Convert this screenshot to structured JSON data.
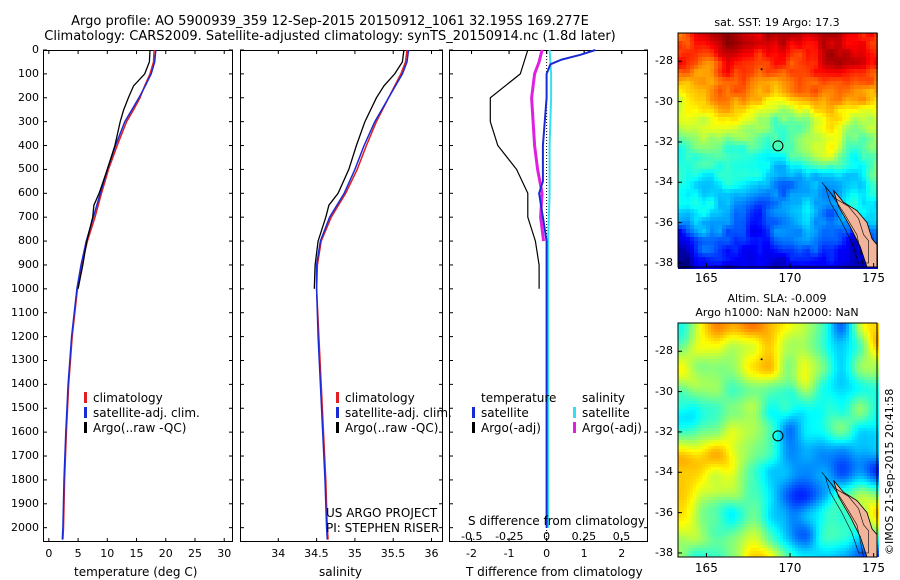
{
  "titles": {
    "line1": "Argo profile: AO 5900939_359 12-Sep-2015 20150912_1061 32.195S 169.277E",
    "line2": "Climatology: CARS2009. Satellite-adjusted climatology: synTS_20150914.nc (1.8d later)"
  },
  "colors": {
    "climatology": "#e02020",
    "satellite": "#1a2bd6",
    "argo": "#000000",
    "sat_salinity": "#33e0f0",
    "argo_salinity": "#e020e0"
  },
  "depth_ticks": [
    "0",
    "100",
    "200",
    "300",
    "400",
    "500",
    "600",
    "700",
    "800",
    "900",
    "1000",
    "1100",
    "1200",
    "1300",
    "1400",
    "1500",
    "1600",
    "1700",
    "1800",
    "1900",
    "2000"
  ],
  "chart_data": [
    {
      "type": "line",
      "xlabel": "temperature (deg C)",
      "ylabel": "",
      "xlim": [
        -1,
        31.5
      ],
      "ylim": [
        2060,
        0
      ],
      "xticks": [
        "0",
        "5",
        "10",
        "15",
        "20",
        "25",
        "30"
      ],
      "legend": [
        "climatology",
        "satellite-adj. clim.",
        "Argo(..raw -QC)"
      ],
      "series": [
        {
          "name": "climatology",
          "depth": [
            0,
            50,
            100,
            150,
            200,
            250,
            300,
            400,
            500,
            600,
            700,
            800,
            900,
            1000,
            1200,
            1400,
            1600,
            1800,
            2000,
            2050
          ],
          "values": [
            18.0,
            17.9,
            17.3,
            16.4,
            15.6,
            14.5,
            13.3,
            11.7,
            10.2,
            9.0,
            7.9,
            6.6,
            5.6,
            4.9,
            4.0,
            3.4,
            3.0,
            2.7,
            2.5,
            2.4
          ]
        },
        {
          "name": "satellite-adj. clim.",
          "depth": [
            0,
            50,
            100,
            150,
            200,
            250,
            300,
            400,
            500,
            600,
            700,
            800,
            900,
            1000,
            1200,
            1400,
            1600,
            1800,
            2000,
            2050
          ],
          "values": [
            18.3,
            18.1,
            17.5,
            16.5,
            15.4,
            14.2,
            13.0,
            11.4,
            10.0,
            8.8,
            7.6,
            6.4,
            5.5,
            4.8,
            3.9,
            3.3,
            2.9,
            2.6,
            2.4,
            2.3
          ]
        },
        {
          "name": "Argo(..raw -QC)",
          "depth": [
            0,
            50,
            100,
            150,
            200,
            250,
            300,
            400,
            500,
            600,
            650,
            700,
            800,
            900,
            1000
          ],
          "values": [
            17.3,
            17.2,
            16.4,
            14.5,
            13.6,
            12.8,
            12.2,
            11.3,
            10.0,
            8.6,
            7.7,
            7.5,
            6.5,
            5.8,
            5.0
          ]
        }
      ]
    },
    {
      "type": "line",
      "xlabel": "salinity",
      "ylabel": "",
      "xlim": [
        33.5,
        36.15
      ],
      "ylim": [
        2060,
        0
      ],
      "xticks": [
        "34",
        "34.5",
        "35",
        "35.5",
        "36"
      ],
      "legend": [
        "climatology",
        "satellite-adj. clim.",
        "Argo(..raw -QC)"
      ],
      "series": [
        {
          "name": "climatology",
          "depth": [
            0,
            50,
            100,
            150,
            200,
            300,
            400,
            500,
            600,
            700,
            800,
            900,
            1000,
            1200,
            1400,
            1600,
            1800,
            2000,
            2050
          ],
          "values": [
            35.68,
            35.66,
            35.6,
            35.52,
            35.44,
            35.28,
            35.15,
            35.03,
            34.88,
            34.69,
            34.56,
            34.51,
            34.5,
            34.53,
            34.56,
            34.59,
            34.62,
            34.64,
            34.65
          ]
        },
        {
          "name": "satellite-adj. clim.",
          "depth": [
            0,
            50,
            100,
            150,
            200,
            300,
            400,
            500,
            600,
            700,
            800,
            900,
            1000,
            1200,
            1400,
            1600,
            1800,
            2000,
            2050
          ],
          "values": [
            35.7,
            35.68,
            35.62,
            35.53,
            35.44,
            35.26,
            35.12,
            35.0,
            34.86,
            34.67,
            34.55,
            34.5,
            34.5,
            34.52,
            34.55,
            34.58,
            34.61,
            34.63,
            34.64
          ]
        },
        {
          "name": "Argo(..raw -QC)",
          "depth": [
            0,
            50,
            100,
            150,
            200,
            300,
            400,
            500,
            600,
            650,
            700,
            800,
            900,
            1000
          ],
          "values": [
            35.64,
            35.62,
            35.52,
            35.38,
            35.28,
            35.13,
            35.02,
            34.92,
            34.78,
            34.66,
            34.62,
            34.52,
            34.48,
            34.47
          ]
        }
      ]
    },
    {
      "type": "line",
      "xlabel": "T difference from climatology",
      "xlabel_top": "S difference from climatology",
      "ylabel": "",
      "xlim": [
        -2.6,
        2.7
      ],
      "ylim": [
        2060,
        0
      ],
      "xticks": [
        "-2",
        "-1",
        "0",
        "1",
        "2"
      ],
      "xticks_top": [
        "-0.5",
        "-0.25",
        "0",
        "0.25",
        "0.5"
      ],
      "legend_left_title": "temperature",
      "legend_right_title": "salinity",
      "legend": [
        "satellite",
        "Argo(-adj)",
        "satellite",
        "Argo(-adj)"
      ],
      "annotation_lines": [
        "US ARGO PROJECT",
        "PI: STEPHEN RISER"
      ],
      "series": [
        {
          "name": "satellite",
          "depth": [
            0,
            20,
            40,
            60,
            100,
            200,
            400,
            550,
            600,
            700,
            800,
            1000,
            1400,
            2000
          ],
          "values": [
            1.3,
            0.9,
            0.4,
            0.1,
            0.0,
            0.0,
            -0.1,
            -0.1,
            -0.2,
            -0.1,
            0.0,
            0.0,
            0.0,
            0.0
          ]
        },
        {
          "name": "Argo(-adj)",
          "depth": [
            0,
            100,
            200,
            300,
            400,
            500,
            600,
            700,
            800,
            900,
            1000
          ],
          "values": [
            -0.5,
            -0.7,
            -1.5,
            -1.5,
            -1.3,
            -0.8,
            -0.5,
            -0.5,
            -0.3,
            -0.2,
            -0.2
          ]
        },
        {
          "name": "satellite",
          "depth": [
            0,
            100,
            200,
            400,
            600,
            800,
            1000,
            1400,
            2000
          ],
          "values": [
            0.02,
            0.03,
            0.03,
            0.02,
            0.02,
            0.01,
            0.01,
            0.01,
            0.01
          ]
        },
        {
          "name": "Argo(-adj)",
          "depth": [
            0,
            50,
            100,
            200,
            300,
            400,
            500,
            600,
            700,
            800
          ],
          "values": [
            -0.03,
            -0.05,
            -0.08,
            -0.1,
            -0.09,
            -0.08,
            -0.06,
            -0.03,
            -0.04,
            -0.02
          ]
        }
      ]
    },
    {
      "type": "heatmap",
      "title": "sat. SST: 19 Argo: 17.3",
      "xticks": [
        "165",
        "170",
        "175"
      ],
      "yticks": [
        "-28",
        "-30",
        "-32",
        "-34",
        "-36",
        "-38"
      ]
    },
    {
      "type": "heatmap",
      "title_lines": [
        "Altim. SLA: -0.009",
        "Argo h1000: NaN h2000: NaN"
      ],
      "xticks": [
        "165",
        "170",
        "175"
      ],
      "yticks": [
        "-28",
        "-30",
        "-32",
        "-34",
        "-36",
        "-38"
      ]
    }
  ],
  "side_stamp": "©IMOS 21-Sep-2015 20:41:58"
}
